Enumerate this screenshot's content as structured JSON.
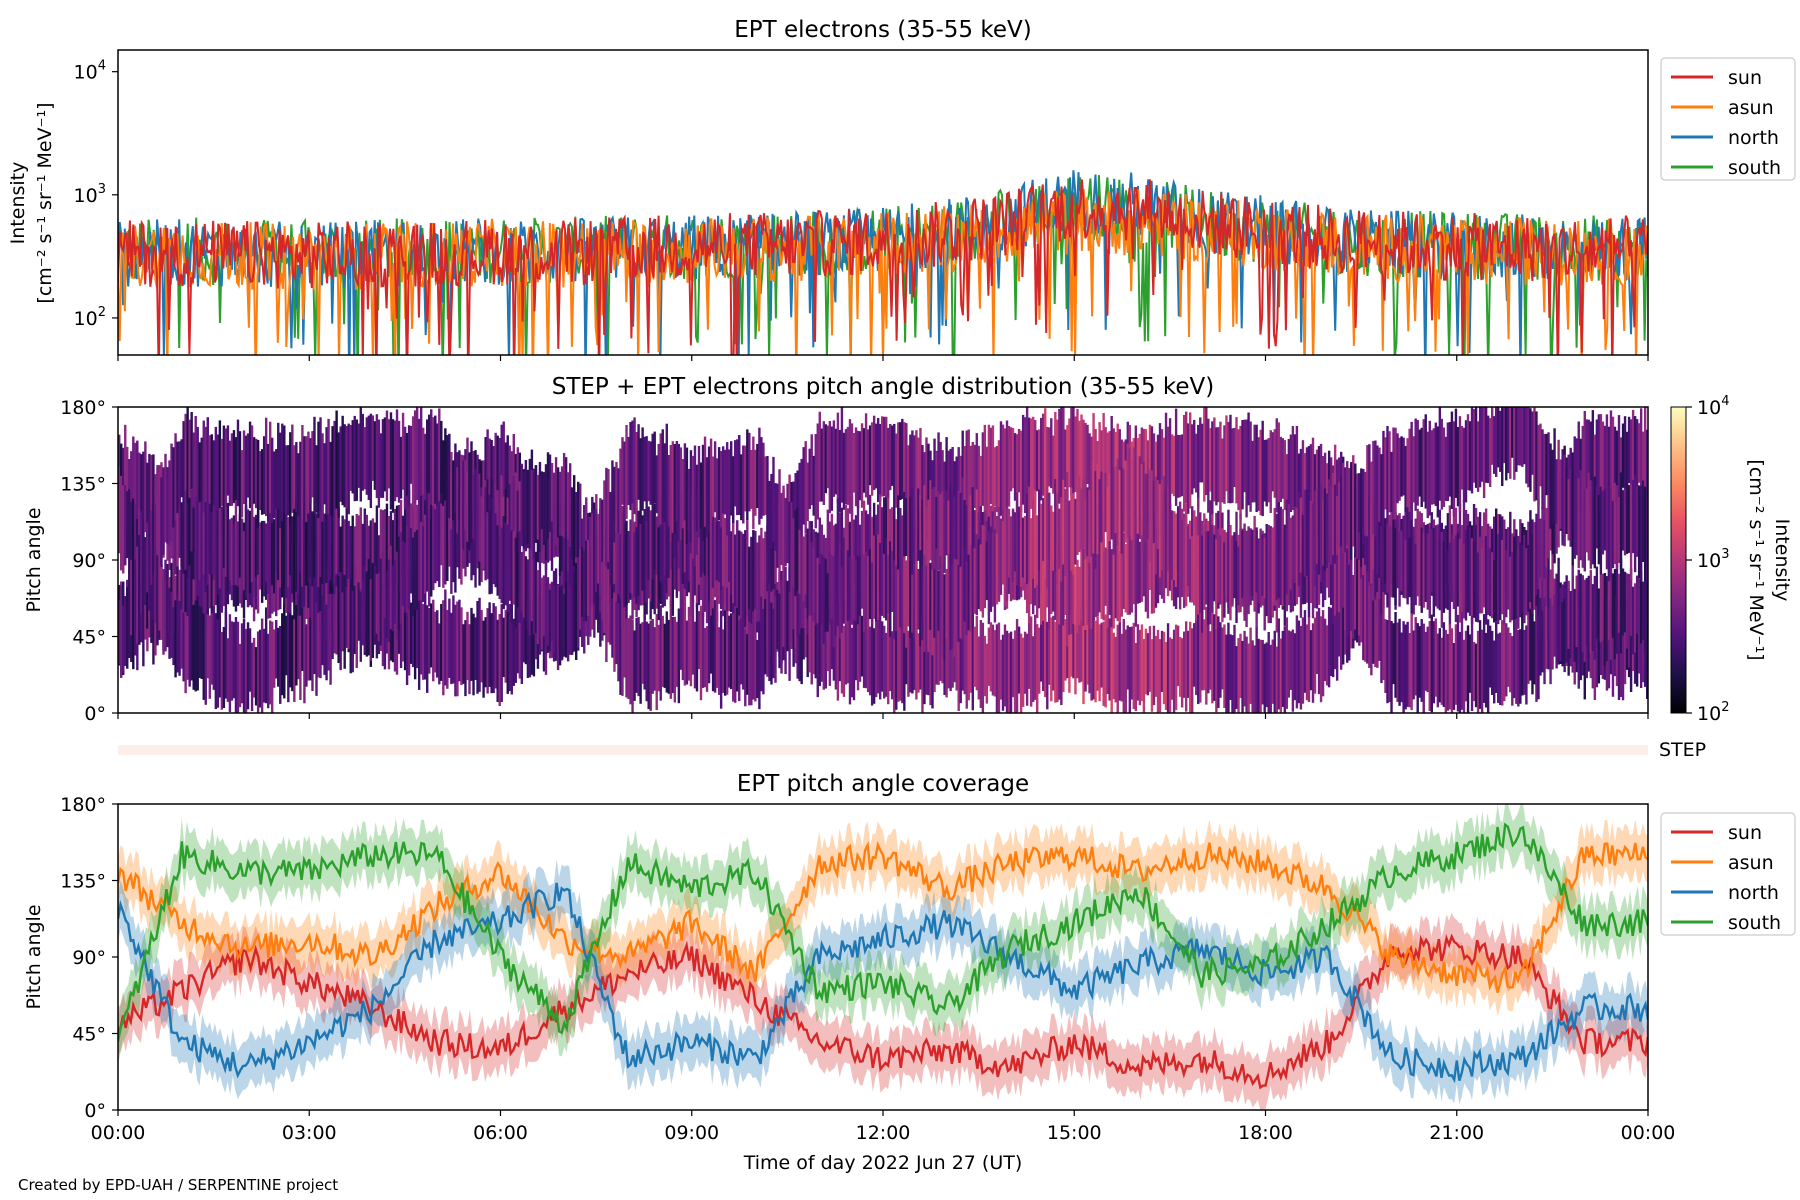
{
  "credit": "Created by EPD-UAH / SERPENTINE project",
  "chart_data": [
    {
      "type": "line",
      "title": "EPT electrons (35-55 keV)",
      "ylabel": [
        "Intensity",
        "[cm⁻² s⁻¹ sr⁻¹ MeV⁻¹]"
      ],
      "yscale": "log",
      "ylim": [
        50,
        15000
      ],
      "yticks": [
        {
          "label": "10",
          "exp": "2",
          "v": 100
        },
        {
          "label": "10",
          "exp": "3",
          "v": 1000
        },
        {
          "label": "10",
          "exp": "4",
          "v": 10000
        }
      ],
      "x_unit": "hour of day",
      "xlim": [
        0,
        24
      ],
      "legend": "outside right",
      "series": [
        {
          "name": "sun",
          "color": "#d62728",
          "hourly_typical": [
            330,
            340,
            330,
            320,
            330,
            340,
            350,
            340,
            360,
            380,
            390,
            400,
            420,
            480,
            600,
            800,
            780,
            600,
            520,
            430,
            400,
            380,
            370,
            360
          ]
        },
        {
          "name": "asun",
          "color": "#ff7f0e",
          "hourly_typical": [
            320,
            330,
            320,
            310,
            320,
            330,
            340,
            330,
            340,
            350,
            360,
            380,
            400,
            430,
            520,
            620,
            600,
            520,
            460,
            400,
            370,
            360,
            350,
            340
          ]
        },
        {
          "name": "north",
          "color": "#1f77b4",
          "hourly_typical": [
            330,
            340,
            330,
            320,
            330,
            340,
            350,
            340,
            360,
            370,
            390,
            400,
            430,
            500,
            640,
            900,
            820,
            620,
            520,
            430,
            400,
            380,
            370,
            360
          ]
        },
        {
          "name": "south",
          "color": "#2ca02c",
          "hourly_typical": [
            340,
            350,
            340,
            330,
            340,
            350,
            360,
            350,
            370,
            380,
            400,
            410,
            430,
            490,
            620,
            820,
            760,
            600,
            510,
            430,
            400,
            390,
            380,
            370
          ]
        }
      ]
    },
    {
      "type": "heatmap",
      "title": "STEP + EPT electrons pitch angle distribution (35-55 keV)",
      "ylabel": "Pitch angle",
      "ylim": [
        0,
        180
      ],
      "yticks": [
        "0°",
        "45°",
        "90°",
        "135°",
        "180°"
      ],
      "xlim": [
        0,
        24
      ],
      "colorbar": {
        "label": [
          "Intensity",
          "[cm⁻² s⁻¹ sr⁻¹ MeV⁻¹]"
        ],
        "scale": "log",
        "range": [
          100,
          10000
        ],
        "ticks": [
          {
            "label": "10",
            "exp": "2"
          },
          {
            "label": "10",
            "exp": "3"
          },
          {
            "label": "10",
            "exp": "4"
          }
        ],
        "colormap": [
          "#000004",
          "#1d1147",
          "#51127c",
          "#822681",
          "#b73779",
          "#e75263",
          "#fc8961",
          "#fec287",
          "#fcfdbf"
        ]
      },
      "typical_intensity_by_hour": [
        330,
        340,
        330,
        320,
        330,
        340,
        350,
        340,
        360,
        380,
        390,
        400,
        420,
        480,
        600,
        800,
        780,
        600,
        520,
        430,
        400,
        380,
        370,
        360
      ]
    },
    {
      "type": "strip",
      "label": "STEP",
      "color": "#fdeee9"
    },
    {
      "type": "line",
      "title": "EPT pitch angle coverage",
      "ylabel": "Pitch angle",
      "ylim": [
        0,
        180
      ],
      "yticks": [
        "0°",
        "45°",
        "90°",
        "135°",
        "180°"
      ],
      "xlabel": "Time of day 2022 Jun 27 (UT)",
      "xticks": [
        "00:00",
        "03:00",
        "06:00",
        "09:00",
        "12:00",
        "15:00",
        "18:00",
        "21:00",
        "00:00"
      ],
      "xlim": [
        0,
        24
      ],
      "legend": "outside right",
      "series": [
        {
          "name": "sun",
          "color": "#d62728",
          "hourly_pitch": [
            50,
            70,
            90,
            75,
            60,
            40,
            35,
            60,
            80,
            90,
            65,
            40,
            30,
            35,
            25,
            40,
            25,
            30,
            20,
            40,
            95,
            95,
            90,
            40
          ]
        },
        {
          "name": "asun",
          "color": "#ff7f0e",
          "hourly_pitch": [
            140,
            110,
            95,
            100,
            90,
            120,
            140,
            100,
            90,
            110,
            80,
            145,
            150,
            130,
            145,
            150,
            140,
            150,
            145,
            130,
            90,
            80,
            75,
            150
          ]
        },
        {
          "name": "north",
          "color": "#1f77b4",
          "hourly_pitch": [
            120,
            40,
            25,
            40,
            60,
            100,
            110,
            130,
            30,
            40,
            30,
            90,
            100,
            110,
            90,
            70,
            85,
            95,
            80,
            90,
            30,
            25,
            30,
            60
          ]
        },
        {
          "name": "south",
          "color": "#2ca02c",
          "hourly_pitch": [
            40,
            150,
            140,
            140,
            150,
            150,
            90,
            50,
            145,
            130,
            140,
            70,
            75,
            60,
            95,
            110,
            130,
            80,
            85,
            110,
            140,
            150,
            165,
            110
          ]
        }
      ]
    }
  ]
}
